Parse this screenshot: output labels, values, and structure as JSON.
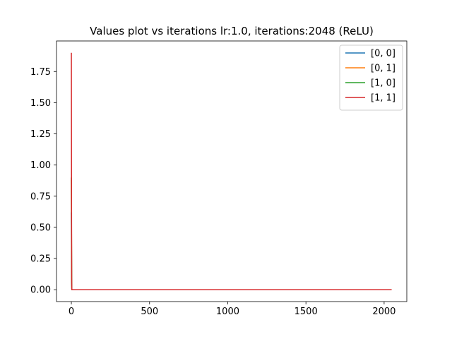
{
  "chart_data": {
    "type": "line",
    "title": "Values plot vs iterations lr:1.0, iterations:2048 (ReLU)",
    "xlabel": "",
    "ylabel": "",
    "xlim": [
      -95,
      2145
    ],
    "ylim": [
      -0.095,
      1.995
    ],
    "xticks": [
      0,
      500,
      1000,
      1500,
      2000
    ],
    "yticks": [
      0.0,
      0.25,
      0.5,
      0.75,
      1.0,
      1.25,
      1.5,
      1.75
    ],
    "ytick_labels": [
      "0.00",
      "0.25",
      "0.50",
      "0.75",
      "1.00",
      "1.25",
      "1.50",
      "1.75"
    ],
    "grid": false,
    "legend_position": "top-right",
    "series": [
      {
        "name": "[0, 0]",
        "color": "#1f77b4",
        "x": [
          0,
          1,
          2,
          3,
          2048
        ],
        "y": [
          0.62,
          0.35,
          0.05,
          0.0,
          0.0
        ]
      },
      {
        "name": "[0, 1]",
        "color": "#ff7f0e",
        "x": [
          0,
          1,
          2,
          3,
          2048
        ],
        "y": [
          0.88,
          0.5,
          0.08,
          0.0,
          0.0
        ]
      },
      {
        "name": "[1, 0]",
        "color": "#2ca02c",
        "x": [
          0,
          1,
          2,
          3,
          2048
        ],
        "y": [
          0.9,
          0.45,
          0.06,
          0.0,
          0.0
        ]
      },
      {
        "name": "[1, 1]",
        "color": "#d62728",
        "x": [
          0,
          1,
          2,
          3,
          2048
        ],
        "y": [
          1.9,
          0.8,
          0.1,
          0.0,
          0.0
        ]
      }
    ]
  }
}
